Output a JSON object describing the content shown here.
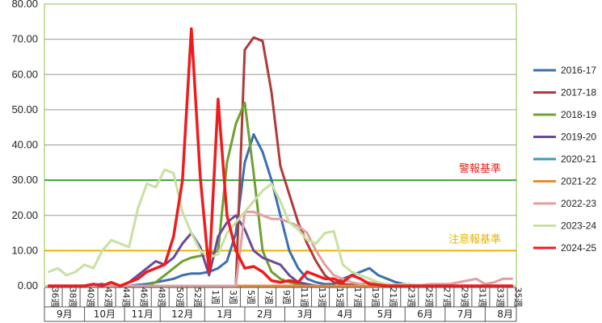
{
  "chart_data": {
    "type": "line",
    "title": "",
    "ylim": [
      0,
      80
    ],
    "yticks": [
      "0.00",
      "10.00",
      "20.00",
      "30.00",
      "40.00",
      "50.00",
      "60.00",
      "70.00",
      "80.00"
    ],
    "week_labels": [
      "36週",
      "38週",
      "40週",
      "42週",
      "44週",
      "46週",
      "48週",
      "50週",
      "52週",
      "1週",
      "3週",
      "5週",
      "7週",
      "9週",
      "11週",
      "13週",
      "15週",
      "17週",
      "19週",
      "21週",
      "23週",
      "25週",
      "27週",
      "29週",
      "31週",
      "33週",
      "35週"
    ],
    "months": [
      "9月",
      "10月",
      "11月",
      "12月",
      "1月",
      "2月",
      "3月",
      "4月",
      "5月",
      "6月",
      "7月",
      "8月"
    ],
    "month_weeks": [
      4.5,
      4.5,
      4,
      5,
      4.5,
      4.5,
      4.5,
      4.5,
      4.5,
      4.5,
      4.5,
      4.5
    ],
    "thresholds": [
      {
        "label": "警報基準",
        "value": 30,
        "color": "#3aa83a",
        "label_color": "#e8251f"
      },
      {
        "label": "注意報基準",
        "value": 10,
        "color": "#e6b400",
        "label_color": "#e6b400"
      }
    ],
    "series": [
      {
        "name": "2016-17",
        "color": "#3a6fb0",
        "width": 3,
        "values": [
          0,
          0,
          0,
          0,
          0,
          0,
          0,
          0,
          0,
          0,
          0.3,
          0.5,
          1,
          1.5,
          2,
          3,
          3.5,
          3.5,
          4,
          5,
          7,
          15,
          35,
          43,
          38,
          30,
          20,
          10,
          5,
          2,
          1,
          0.5,
          0.5,
          2,
          3,
          4,
          5,
          3,
          2,
          1,
          0.5,
          0.3,
          0.2,
          0.1,
          0,
          0,
          0,
          0,
          0,
          0,
          0,
          0,
          0
        ]
      },
      {
        "name": "2017-18",
        "color": "#b03a3a",
        "width": 3,
        "values": [
          0,
          0,
          0,
          0,
          0,
          0,
          0,
          0,
          0,
          0,
          0,
          0,
          0,
          0,
          0,
          0,
          0,
          0,
          0,
          0,
          0,
          0,
          67,
          70.5,
          69.5,
          55,
          34,
          26,
          18,
          12,
          7,
          3,
          1,
          0.5,
          0.3,
          0,
          0,
          0,
          0,
          0,
          0,
          0,
          0,
          0,
          0,
          0,
          0,
          0,
          0,
          0,
          0,
          0,
          0
        ]
      },
      {
        "name": "2018-19",
        "color": "#6fa030",
        "width": 3,
        "values": [
          0,
          0,
          0,
          0,
          0,
          0,
          0,
          0,
          0,
          0,
          0,
          0,
          1,
          3,
          5,
          7,
          8,
          8.5,
          9,
          10,
          35,
          46,
          52,
          32,
          10,
          4,
          2,
          1,
          0.5,
          0,
          0,
          0,
          0,
          0,
          0,
          0,
          0,
          0,
          0,
          0,
          0,
          0,
          0,
          0,
          0,
          0,
          0,
          0,
          0,
          0,
          0,
          0,
          0
        ]
      },
      {
        "name": "2019-20",
        "color": "#6a4a9a",
        "width": 3,
        "values": [
          0,
          0,
          0,
          0,
          0,
          0.3,
          0.5,
          0,
          0,
          1,
          3,
          5,
          7,
          6,
          8,
          12,
          15,
          11,
          3,
          14,
          18,
          20,
          16,
          10,
          8,
          7,
          6,
          3,
          1,
          0.5,
          0,
          0,
          0,
          0,
          0,
          0,
          0,
          0,
          0,
          0,
          0,
          0,
          0,
          0,
          0,
          0,
          0,
          0,
          0,
          0,
          0,
          0,
          0
        ]
      },
      {
        "name": "2020-21",
        "color": "#3a9ab8",
        "width": 3,
        "values": [
          0,
          0,
          0,
          0,
          0,
          0,
          0,
          0,
          0,
          0,
          0,
          0,
          0,
          0,
          0,
          0,
          0,
          0,
          0,
          0,
          0,
          0,
          0,
          0,
          0,
          0,
          0,
          0,
          0,
          0,
          0,
          0,
          0,
          0,
          0,
          0,
          0,
          0,
          0,
          0,
          0,
          0,
          0,
          0,
          0,
          0,
          0,
          0,
          0,
          0,
          0,
          0,
          0
        ]
      },
      {
        "name": "2021-22",
        "color": "#e88a30",
        "width": 3,
        "values": [
          0,
          0,
          0,
          0,
          0,
          0,
          0,
          0,
          0,
          0,
          0,
          0,
          0,
          0,
          0,
          0,
          0,
          0,
          0,
          0,
          0,
          0,
          0,
          0,
          0,
          0,
          0,
          0,
          0,
          0,
          0,
          0,
          0,
          0,
          0,
          0,
          0,
          0,
          0,
          0,
          0,
          0,
          0,
          0,
          0,
          0,
          0,
          0,
          0,
          0,
          0,
          0,
          0
        ]
      },
      {
        "name": "2022-23",
        "color": "#e0a0a0",
        "width": 3,
        "values": [
          0,
          0,
          0,
          0,
          0,
          0,
          0,
          0,
          0,
          0,
          0,
          0,
          0,
          0,
          0,
          0,
          0,
          0,
          0,
          0,
          0,
          0,
          21,
          21,
          20,
          19,
          19,
          18,
          17,
          15,
          10,
          6,
          3,
          2,
          1,
          0.5,
          1,
          0.5,
          0.5,
          0.3,
          0.2,
          0.2,
          0.3,
          0.5,
          0.5,
          0.5,
          1,
          1.5,
          2,
          0.5,
          1,
          2,
          2
        ]
      },
      {
        "name": "2023-24",
        "color": "#c8e0a0",
        "width": 3,
        "values": [
          4,
          5,
          3,
          4,
          6,
          5,
          10,
          13,
          12,
          11,
          22,
          29,
          28,
          33,
          32,
          21,
          15,
          10,
          8,
          9,
          15,
          18,
          21,
          24,
          27,
          29,
          24,
          18,
          16,
          13,
          12,
          15,
          15.5,
          6,
          4,
          3,
          2,
          1,
          0.5,
          0.3,
          0.5,
          0.3,
          0.2,
          0.1,
          0,
          0,
          0,
          0,
          0,
          0,
          0,
          0,
          0
        ]
      },
      {
        "name": "2024-25",
        "color": "#ee1c1c",
        "width": 3.5,
        "values": [
          0,
          0,
          0,
          0,
          0,
          0.5,
          0,
          1,
          0,
          1,
          2,
          4,
          5,
          6,
          14,
          30,
          73,
          31,
          4,
          53,
          20,
          10,
          5,
          5.5,
          4,
          1.5,
          1,
          1.5,
          1,
          4,
          3,
          2,
          2,
          1,
          3,
          2,
          0.5,
          0.3,
          0,
          0,
          0,
          0,
          0,
          0,
          0,
          0,
          0,
          0,
          0,
          0,
          0,
          0,
          0
        ]
      }
    ]
  }
}
